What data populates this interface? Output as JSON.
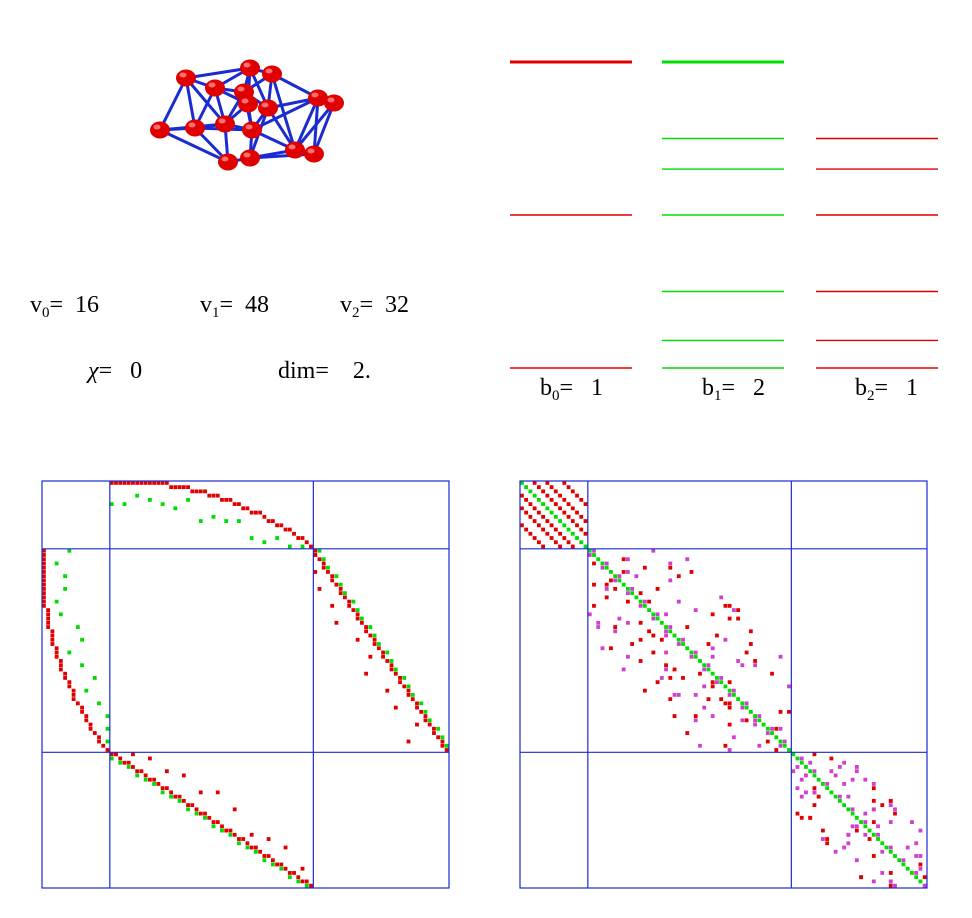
{
  "stats": {
    "v0": {
      "label": "v",
      "sub": "0",
      "eq": "=",
      "value": "16"
    },
    "v1": {
      "label": "v",
      "sub": "1",
      "eq": "=",
      "value": "48"
    },
    "v2": {
      "label": "v",
      "sub": "2",
      "eq": "=",
      "value": "32"
    },
    "chi": {
      "label": "χ",
      "eq": "=",
      "value": "0"
    },
    "dim": {
      "label": "dim",
      "eq": "=",
      "value": "2."
    }
  },
  "betti": [
    {
      "label": "b",
      "sub": "0",
      "eq": "=",
      "value": "1"
    },
    {
      "label": "b",
      "sub": "1",
      "eq": "=",
      "value": "2"
    },
    {
      "label": "b",
      "sub": "2",
      "eq": "=",
      "value": "1"
    }
  ],
  "colors": {
    "vertex": "#e00000",
    "edge": "#1a2bd0",
    "red": "#e00000",
    "green": "#00dd00",
    "magenta": "#d040d0",
    "grid": "#1a2bd0"
  },
  "graph": {
    "vertices": 16,
    "edges": 48
  },
  "spectrum": {
    "columns": [
      {
        "color": "red",
        "levels": [
          1.0,
          0.5,
          0.0
        ],
        "thick_top": true
      },
      {
        "color": "green",
        "levels": [
          1.0,
          0.75,
          0.65,
          0.5,
          0.25,
          0.09,
          0.0
        ],
        "thick_top": true
      },
      {
        "color": "red",
        "levels": [
          0.75,
          0.65,
          0.5,
          0.25,
          0.09,
          0.0
        ],
        "thick_top": false
      }
    ]
  },
  "matrices": {
    "blocks": [
      16,
      48,
      32
    ]
  }
}
